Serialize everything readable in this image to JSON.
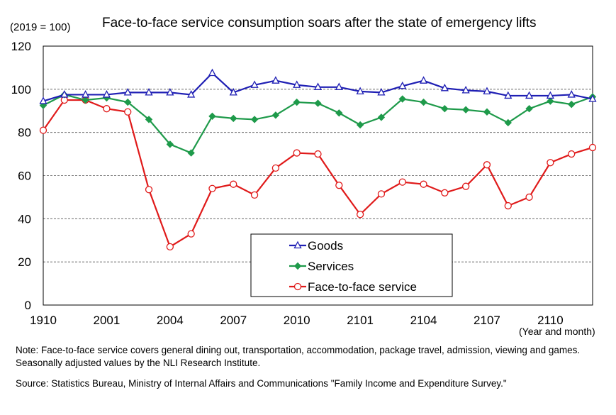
{
  "chart_data": {
    "type": "line",
    "title": "Face-to-face service consumption soars after the state of emergency lifts",
    "unit_label": "(2019 = 100)",
    "xlabel": "(Year and month)",
    "ylabel": "",
    "ylim": [
      0,
      120
    ],
    "yticks": [
      0,
      20,
      40,
      60,
      80,
      100,
      120
    ],
    "grid": true,
    "legend_position": "bottom-center",
    "x": [
      "1910",
      "1911",
      "1912",
      "2001",
      "2002",
      "2003",
      "2004",
      "2005",
      "2006",
      "2007",
      "2008",
      "2009",
      "2010",
      "2011",
      "2012",
      "2101",
      "2102",
      "2103",
      "2104",
      "2105",
      "2106",
      "2107",
      "2108",
      "2109",
      "2110",
      "2111",
      "2112"
    ],
    "xtick_labels": [
      "1910",
      "2001",
      "2004",
      "2007",
      "2010",
      "2101",
      "2104",
      "2107",
      "2110"
    ],
    "series": [
      {
        "name": "Goods",
        "color": "#1f1fb4",
        "marker": "triangle",
        "values": [
          94.5,
          97.5,
          97.5,
          97.5,
          98.5,
          98.5,
          98.5,
          97.5,
          107.5,
          98.5,
          102,
          104,
          102,
          101,
          101,
          99,
          98.5,
          101.5,
          104,
          100.5,
          99.5,
          99,
          97,
          97,
          97,
          97.5,
          95.5
        ]
      },
      {
        "name": "Services",
        "color": "#1e9a4a",
        "marker": "diamond",
        "values": [
          92.5,
          97.5,
          95,
          96,
          94,
          86,
          74.5,
          70.5,
          87.5,
          86.5,
          86,
          88,
          94,
          93.5,
          89,
          83.5,
          87,
          95.5,
          94,
          91,
          90.5,
          89.5,
          84.5,
          91,
          94.5,
          93,
          96.5
        ]
      },
      {
        "name": "Face-to-face service",
        "color": "#e01a1a",
        "marker": "circle",
        "values": [
          81,
          95,
          95,
          91,
          89.5,
          53.5,
          27,
          33,
          54,
          56,
          51,
          63.5,
          70.5,
          70,
          55.5,
          42,
          51.5,
          57,
          56,
          52,
          55,
          65,
          46,
          50,
          66,
          70,
          73
        ]
      }
    ]
  },
  "note": "Note: Face-to-face service covers general dining out, transportation, accommodation, package travel, admission, viewing and games. Seasonally adjusted values by the NLI Research Institute.",
  "source": "Source: Statistics Bureau, Ministry of Internal Affairs and Communications \"Family Income and Expenditure Survey.\""
}
